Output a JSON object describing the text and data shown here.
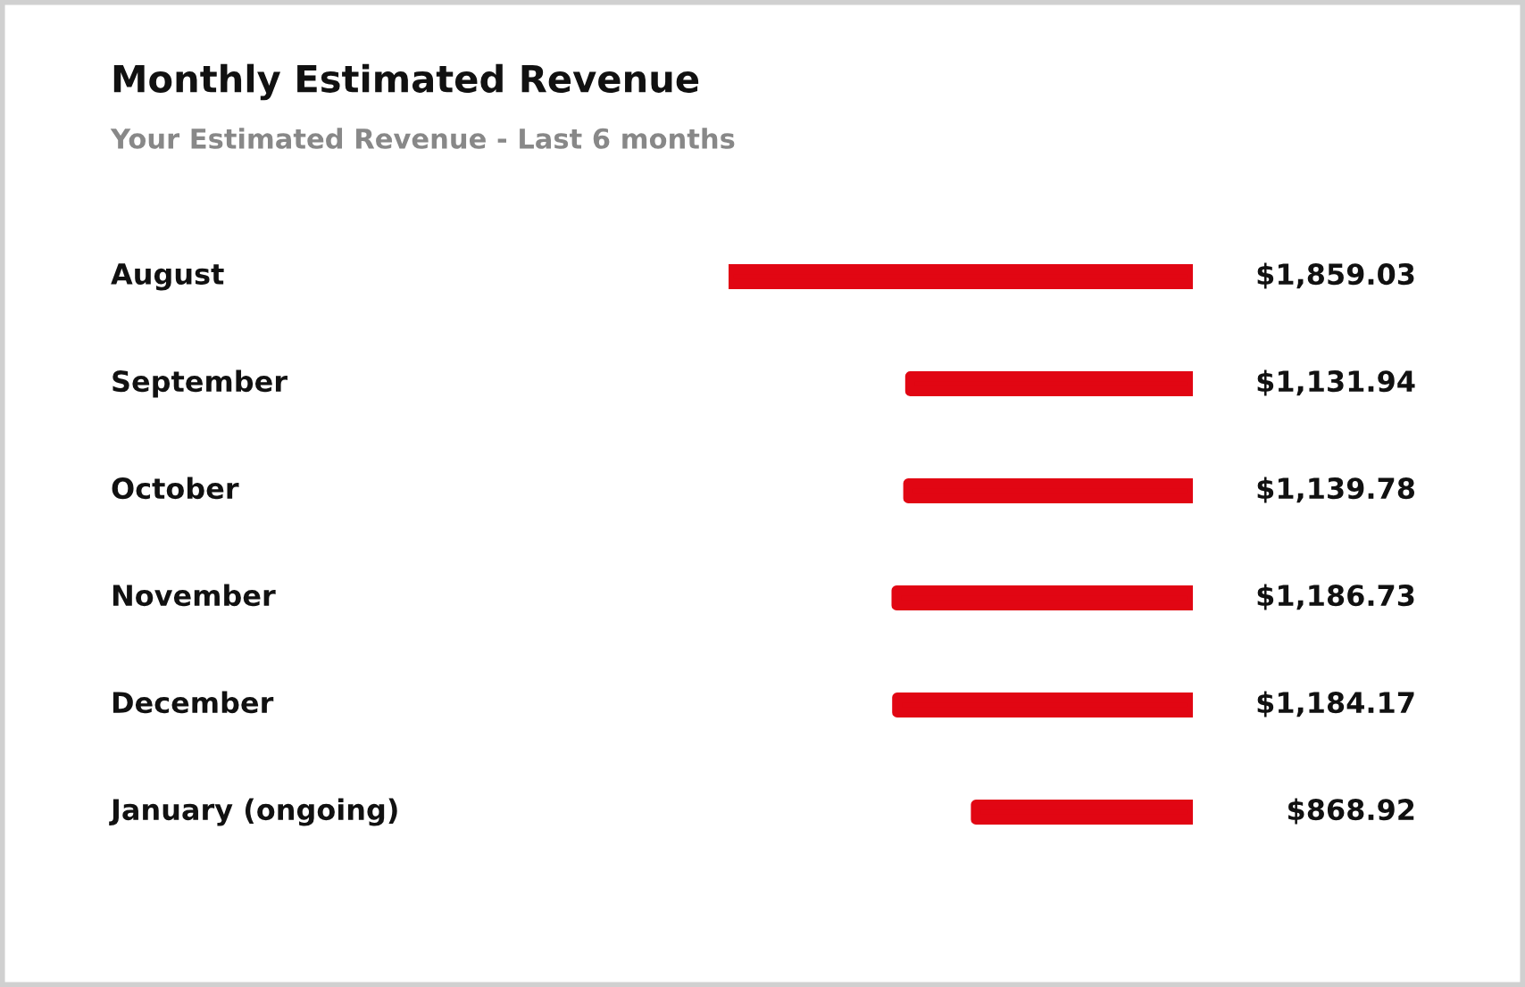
{
  "chart_data": {
    "type": "bar",
    "orientation": "horizontal",
    "title": "Monthly Estimated Revenue",
    "subtitle": "Your Estimated Revenue - Last 6 months",
    "categories": [
      "August",
      "September",
      "October",
      "November",
      "December",
      "January (ongoing)"
    ],
    "values": [
      1859.03,
      1131.94,
      1139.78,
      1186.73,
      1184.17,
      868.92
    ],
    "value_labels": [
      "$1,859.03",
      "$1,131.94",
      "$1,139.78",
      "$1,186.73",
      "$1,184.17",
      "$868.92"
    ],
    "color": "#e10613"
  }
}
